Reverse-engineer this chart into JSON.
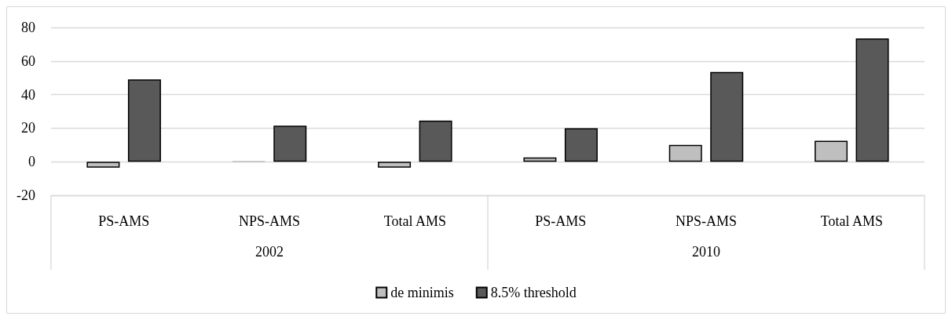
{
  "chart_data": {
    "type": "bar",
    "categories": [
      "PS-AMS",
      "NPS-AMS",
      "Total AMS",
      "PS-AMS",
      "NPS-AMS",
      "Total AMS"
    ],
    "series": [
      {
        "name": "de minimis",
        "color": "#bfbfbf",
        "values": [
          -3.5,
          0.3,
          -3.5,
          2.5,
          10,
          12.5
        ]
      },
      {
        "name": "8.5% threshold",
        "color": "#595959",
        "values": [
          49,
          21.5,
          24.5,
          20,
          53.5,
          73.5
        ]
      }
    ],
    "annotations": [
      "2002",
      "2010"
    ],
    "ylim": [
      -20,
      80
    ],
    "yticks": [
      -20,
      0,
      20,
      40,
      60,
      80
    ],
    "grid": "y",
    "legend": "bottom"
  }
}
